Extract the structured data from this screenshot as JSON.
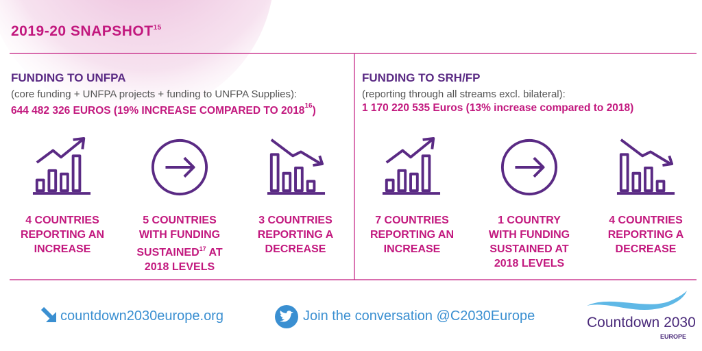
{
  "title": {
    "text": "2019-20 SNAPSHOT",
    "footnote": "15"
  },
  "panels": [
    {
      "heading": "FUNDING TO UNFPA",
      "note": "(core funding + UNFPA projects +  funding to UNFPA Supplies):",
      "amount": "644 482 326 EUROS (19% INCREASE COMPARED TO 2018",
      "amount_footnote": "16",
      "amount_end": ")",
      "stats": [
        [
          "4 COUNTRIES",
          "REPORTING AN",
          "INCREASE"
        ],
        [
          "5 COUNTRIES",
          "WITH FUNDING",
          "SUSTAINED",
          "17",
          " AT",
          "2018 LEVELS"
        ],
        [
          "3 COUNTRIES",
          "REPORTING A",
          "DECREASE"
        ]
      ]
    },
    {
      "heading": "FUNDING TO SRH/FP",
      "note": "(reporting through all streams excl. bilateral):",
      "amount": "1 170 220 535 Euros (13% increase compared to 2018)",
      "stats": [
        [
          "7 COUNTRIES",
          "REPORTING AN",
          "INCREASE"
        ],
        [
          "1 COUNTRY",
          "WITH FUNDING",
          "SUSTAINED AT",
          "2018 LEVELS"
        ],
        [
          "4 COUNTRIES",
          "REPORTING A",
          "DECREASE"
        ]
      ]
    }
  ],
  "footer": {
    "website": "countdown2030europe.org",
    "twitter": "Join the conversation @C2030Europe",
    "logo": "Countdown 2030",
    "logo_sub": "EUROPE"
  }
}
